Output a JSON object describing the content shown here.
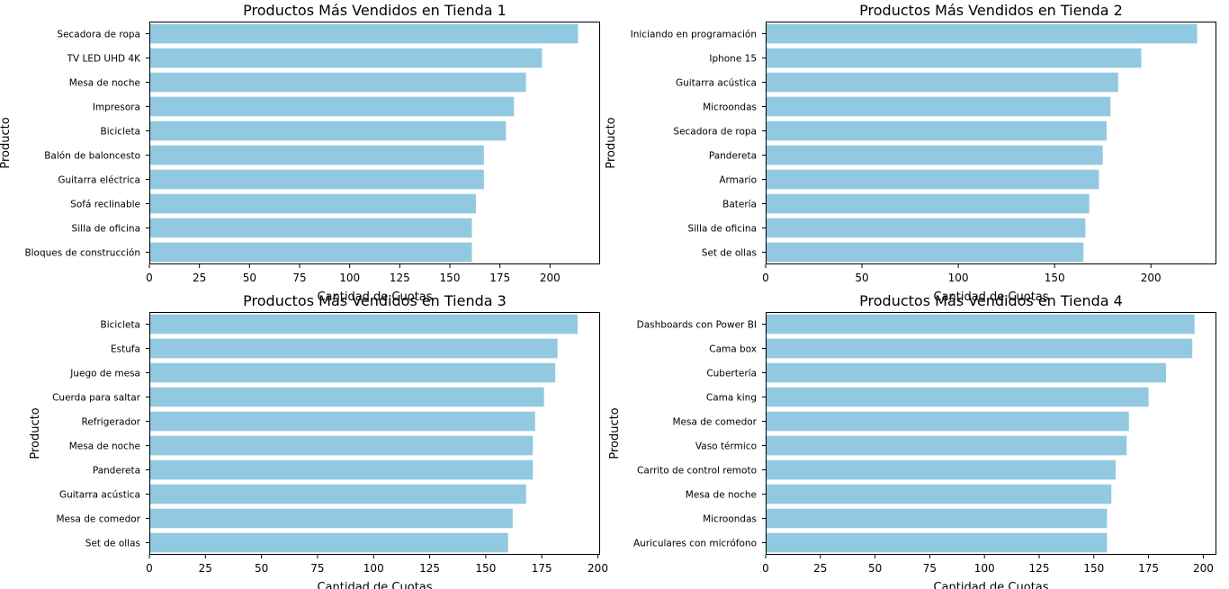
{
  "chart_data": [
    {
      "type": "bar",
      "orientation": "horizontal",
      "title": "Productos Más Vendidos en Tienda 1",
      "xlabel": "Cantidad de Cuotas",
      "ylabel": "Producto",
      "categories": [
        "Secadora de ropa",
        "TV LED UHD 4K",
        "Mesa de noche",
        "Impresora",
        "Bicicleta",
        "Balón de baloncesto",
        "Guitarra eléctrica",
        "Sofá reclinable",
        "Silla de oficina",
        "Bloques de construcción"
      ],
      "values": [
        214,
        196,
        188,
        182,
        178,
        167,
        167,
        163,
        161,
        161
      ],
      "xticks": [
        0,
        25,
        50,
        75,
        100,
        125,
        150,
        175,
        200
      ],
      "xlim": [
        0,
        225
      ],
      "color": "#92c9e0",
      "grid": false
    },
    {
      "type": "bar",
      "orientation": "horizontal",
      "title": "Productos Más Vendidos en Tienda 2",
      "xlabel": "Cantidad de Cuotas",
      "ylabel": "Producto",
      "categories": [
        "Iniciando en programación",
        "Iphone 15",
        "Guitarra acústica",
        "Microondas",
        "Secadora de ropa",
        "Pandereta",
        "Armario",
        "Batería",
        "Silla de oficina",
        "Set de ollas"
      ],
      "values": [
        224,
        195,
        183,
        179,
        177,
        175,
        173,
        168,
        166,
        165
      ],
      "xticks": [
        0,
        50,
        100,
        150,
        200
      ],
      "xlim": [
        0,
        234
      ],
      "color": "#92c9e0",
      "grid": false
    },
    {
      "type": "bar",
      "orientation": "horizontal",
      "title": "Productos Más Vendidos en Tienda 3",
      "xlabel": "Cantidad de Cuotas",
      "ylabel": "Producto",
      "categories": [
        "Bicicleta",
        "Estufa",
        "Juego de mesa",
        "Cuerda para saltar",
        "Refrigerador",
        "Mesa de noche",
        "Pandereta",
        "Guitarra acústica",
        "Mesa de comedor",
        "Set de ollas"
      ],
      "values": [
        191,
        182,
        181,
        176,
        172,
        171,
        171,
        168,
        162,
        160
      ],
      "xticks": [
        0,
        25,
        50,
        75,
        100,
        125,
        150,
        175,
        200
      ],
      "xlim": [
        0,
        201
      ],
      "color": "#92c9e0",
      "grid": false
    },
    {
      "type": "bar",
      "orientation": "horizontal",
      "title": "Productos Más Vendidos en Tienda 4",
      "xlabel": "Cantidad de Cuotas",
      "ylabel": "Producto",
      "categories": [
        "Dashboards con Power BI",
        "Cama box",
        "Cubertería",
        "Cama king",
        "Mesa de comedor",
        "Vaso térmico",
        "Carrito de control remoto",
        "Mesa de noche",
        "Microondas",
        "Auriculares con micrófono"
      ],
      "values": [
        196,
        195,
        183,
        175,
        166,
        165,
        160,
        158,
        156,
        156
      ],
      "xticks": [
        0,
        25,
        50,
        75,
        100,
        125,
        150,
        175,
        200
      ],
      "xlim": [
        0,
        206
      ],
      "color": "#92c9e0",
      "grid": false
    }
  ]
}
